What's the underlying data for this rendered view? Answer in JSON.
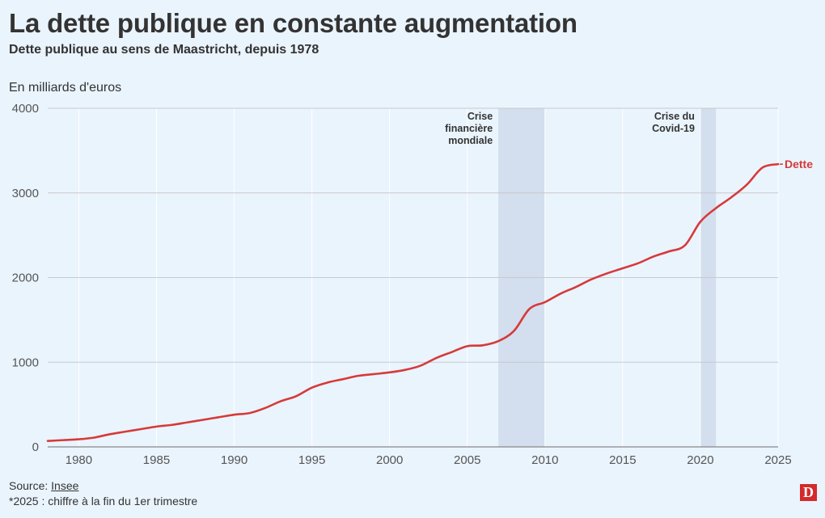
{
  "header": {
    "title": "La dette publique en constante augmentation",
    "subtitle": "Dette publique au sens de Maastricht, depuis 1978",
    "unit_label": "En milliards d'euros"
  },
  "footer": {
    "source_prefix": "Source: ",
    "source_link": "Insee",
    "note": "*2025 : chiffre à la fin du 1er trimestre",
    "logo_letter": "D"
  },
  "colors": {
    "background": "#eaf4fd",
    "line": "#d63a3a",
    "crisis_band": "#d3deee"
  },
  "chart_data": {
    "type": "line",
    "title": "La dette publique en constante augmentation",
    "subtitle": "Dette publique au sens de Maastricht, depuis 1978",
    "ylabel": "En milliards d'euros",
    "xlim": [
      1978,
      2025
    ],
    "ylim": [
      0,
      4000
    ],
    "x_ticks": [
      1980,
      1985,
      1990,
      1995,
      2000,
      2005,
      2010,
      2015,
      2020,
      2025
    ],
    "y_ticks": [
      0,
      1000,
      2000,
      3000,
      4000
    ],
    "grid": true,
    "series": [
      {
        "name": "Dette",
        "x": [
          1978,
          1979,
          1980,
          1981,
          1982,
          1983,
          1984,
          1985,
          1986,
          1987,
          1988,
          1989,
          1990,
          1991,
          1992,
          1993,
          1994,
          1995,
          1996,
          1997,
          1998,
          1999,
          2000,
          2001,
          2002,
          2003,
          2004,
          2005,
          2006,
          2007,
          2008,
          2009,
          2010,
          2011,
          2012,
          2013,
          2014,
          2015,
          2016,
          2017,
          2018,
          2019,
          2020,
          2021,
          2022,
          2023,
          2024,
          2025
        ],
        "values": [
          70,
          80,
          90,
          110,
          150,
          180,
          210,
          240,
          260,
          290,
          320,
          350,
          380,
          400,
          460,
          540,
          600,
          700,
          760,
          800,
          840,
          860,
          880,
          910,
          960,
          1050,
          1120,
          1190,
          1200,
          1250,
          1370,
          1630,
          1710,
          1810,
          1890,
          1980,
          2050,
          2110,
          2170,
          2250,
          2310,
          2380,
          2660,
          2820,
          2950,
          3100,
          3300,
          3340
        ]
      }
    ],
    "bands": [
      {
        "from": 2007,
        "to": 2010,
        "label_lines": [
          "Crise",
          "financière",
          "mondiale"
        ]
      },
      {
        "from": 2020,
        "to": 2021,
        "label_lines": [
          "Crise du",
          "Covid-19"
        ]
      }
    ]
  }
}
